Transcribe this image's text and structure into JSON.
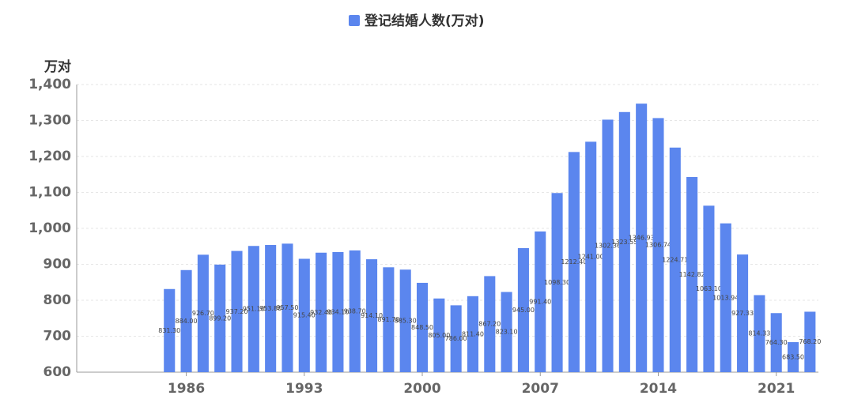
{
  "chart_data": {
    "type": "bar",
    "legend": "登记结婚人数(万对)",
    "y_axis_label": "万对",
    "color": "#5b86ee",
    "categories": [
      null,
      null,
      null,
      null,
      null,
      null,
      1986,
      null,
      null,
      null,
      null,
      null,
      null,
      1993,
      null,
      null,
      null,
      null,
      null,
      null,
      2000,
      null,
      null,
      null,
      null,
      null,
      null,
      2007,
      null,
      null,
      null,
      null,
      null,
      null,
      2014,
      null,
      null,
      null,
      null,
      null,
      null,
      2021,
      null,
      null
    ],
    "values": [
      null,
      null,
      null,
      null,
      null,
      831.3,
      884,
      926.7,
      899.2,
      937.2,
      951.1,
      953.8,
      957.5,
      915.4,
      932.4,
      934.1,
      938.7,
      914.1,
      891.7,
      885.3,
      848.5,
      805,
      786,
      811.4,
      867.2,
      823.1,
      945,
      991.4,
      1098.3,
      1212.4,
      1241,
      1302.36,
      1323.55,
      1346.93,
      1306.74,
      1224.71,
      1142.82,
      1063.1,
      1013.94,
      927.33,
      814.33,
      764.3,
      683.5,
      768.2
    ],
    "value_labels": [
      null,
      null,
      null,
      null,
      null,
      "831.30",
      "884.00",
      "926.70",
      "899.20",
      "937.20",
      "951.10",
      "953.80",
      "957.50",
      "915.40",
      "932.40",
      "934.10",
      "938.70",
      "914.10",
      "891.70",
      "885.30",
      "848.50",
      "805.00",
      "786.00",
      "811.40",
      "867.20",
      "823.10",
      "945.00",
      "991.40",
      "1098.30",
      "1212.40",
      "1241.00",
      "1302.36",
      "1323.55",
      "1346.93",
      "1306.74",
      "1224.71",
      "1142.82",
      "1063.10",
      "1013.94",
      "927.33",
      "814.33",
      "764.30",
      "683.50",
      "768.20"
    ],
    "ylim": [
      600,
      1400
    ],
    "yticks": [
      600,
      700,
      800,
      900,
      {
        "value": 1000,
        "label": "1,000"
      },
      {
        "value": 1100,
        "label": "1,100"
      },
      {
        "value": 1200,
        "label": "1,200"
      },
      {
        "value": 1300,
        "label": "1,300"
      },
      {
        "value": 1400,
        "label": "1,400"
      }
    ],
    "grid": true
  }
}
